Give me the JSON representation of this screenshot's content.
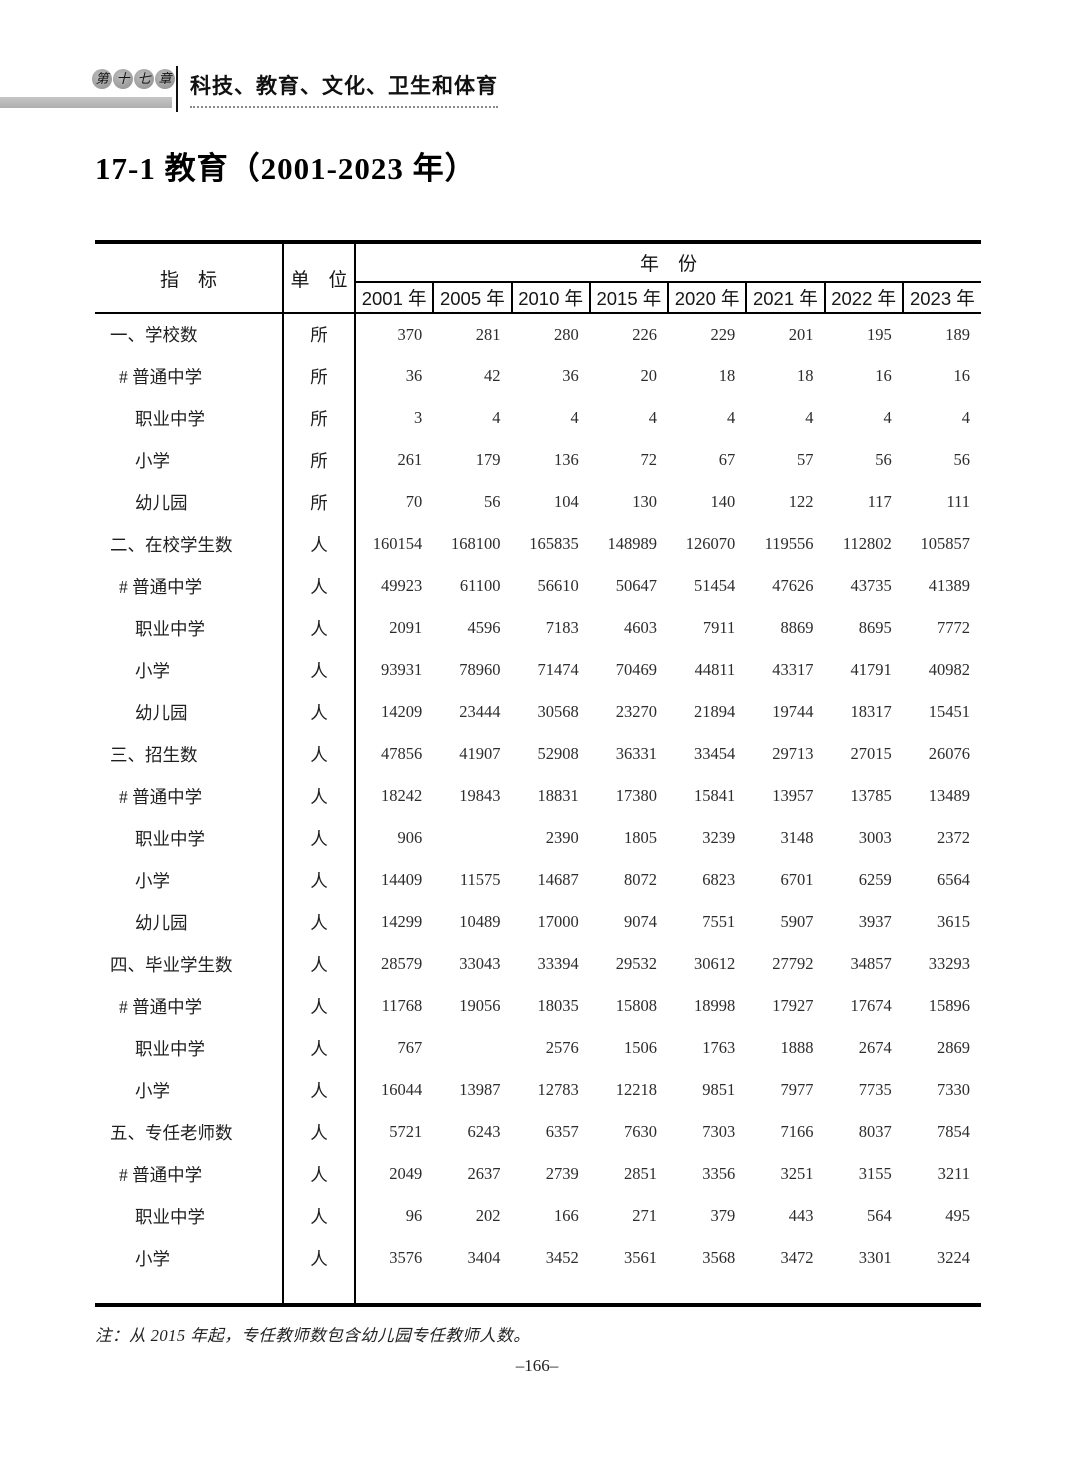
{
  "page": {
    "chapter_badge": "第十七章",
    "chapter_title": "科技、教育、文化、卫生和体育",
    "title": "17-1  教育（2001-2023 年）",
    "note": "注：从 2015 年起，专任教师数包含幼儿园专任教师人数。",
    "page_number": "–166–"
  },
  "table": {
    "header": {
      "indicator": "指　标",
      "unit": "单　位",
      "year_group": "年　份",
      "years": [
        "2001 年",
        "2005 年",
        "2010 年",
        "2015 年",
        "2020 年",
        "2021 年",
        "2022 年",
        "2023 年"
      ]
    },
    "rows": [
      {
        "indicator": "一、学校数",
        "indent": 0,
        "unit": "所",
        "values": [
          "370",
          "281",
          "280",
          "226",
          "229",
          "201",
          "195",
          "189"
        ]
      },
      {
        "indicator": "# 普通中学",
        "indent": 1,
        "unit": "所",
        "values": [
          "36",
          "42",
          "36",
          "20",
          "18",
          "18",
          "16",
          "16"
        ]
      },
      {
        "indicator": "职业中学",
        "indent": 2,
        "unit": "所",
        "values": [
          "3",
          "4",
          "4",
          "4",
          "4",
          "4",
          "4",
          "4"
        ]
      },
      {
        "indicator": "小学",
        "indent": 2,
        "unit": "所",
        "values": [
          "261",
          "179",
          "136",
          "72",
          "67",
          "57",
          "56",
          "56"
        ]
      },
      {
        "indicator": "幼儿园",
        "indent": 2,
        "unit": "所",
        "values": [
          "70",
          "56",
          "104",
          "130",
          "140",
          "122",
          "117",
          "111"
        ]
      },
      {
        "indicator": "二、在校学生数",
        "indent": 0,
        "unit": "人",
        "values": [
          "160154",
          "168100",
          "165835",
          "148989",
          "126070",
          "119556",
          "112802",
          "105857"
        ]
      },
      {
        "indicator": "# 普通中学",
        "indent": 1,
        "unit": "人",
        "values": [
          "49923",
          "61100",
          "56610",
          "50647",
          "51454",
          "47626",
          "43735",
          "41389"
        ]
      },
      {
        "indicator": "职业中学",
        "indent": 2,
        "unit": "人",
        "values": [
          "2091",
          "4596",
          "7183",
          "4603",
          "7911",
          "8869",
          "8695",
          "7772"
        ]
      },
      {
        "indicator": "小学",
        "indent": 2,
        "unit": "人",
        "values": [
          "93931",
          "78960",
          "71474",
          "70469",
          "44811",
          "43317",
          "41791",
          "40982"
        ]
      },
      {
        "indicator": "幼儿园",
        "indent": 2,
        "unit": "人",
        "values": [
          "14209",
          "23444",
          "30568",
          "23270",
          "21894",
          "19744",
          "18317",
          "15451"
        ]
      },
      {
        "indicator": "三、招生数",
        "indent": 0,
        "unit": "人",
        "values": [
          "47856",
          "41907",
          "52908",
          "36331",
          "33454",
          "29713",
          "27015",
          "26076"
        ]
      },
      {
        "indicator": "# 普通中学",
        "indent": 1,
        "unit": "人",
        "values": [
          "18242",
          "19843",
          "18831",
          "17380",
          "15841",
          "13957",
          "13785",
          "13489"
        ]
      },
      {
        "indicator": "职业中学",
        "indent": 2,
        "unit": "人",
        "values": [
          "906",
          "",
          "2390",
          "1805",
          "3239",
          "3148",
          "3003",
          "2372"
        ]
      },
      {
        "indicator": "小学",
        "indent": 2,
        "unit": "人",
        "values": [
          "14409",
          "11575",
          "14687",
          "8072",
          "6823",
          "6701",
          "6259",
          "6564"
        ]
      },
      {
        "indicator": "幼儿园",
        "indent": 2,
        "unit": "人",
        "values": [
          "14299",
          "10489",
          "17000",
          "9074",
          "7551",
          "5907",
          "3937",
          "3615"
        ]
      },
      {
        "indicator": "四、毕业学生数",
        "indent": 0,
        "unit": "人",
        "values": [
          "28579",
          "33043",
          "33394",
          "29532",
          "30612",
          "27792",
          "34857",
          "33293"
        ]
      },
      {
        "indicator": "# 普通中学",
        "indent": 1,
        "unit": "人",
        "values": [
          "11768",
          "19056",
          "18035",
          "15808",
          "18998",
          "17927",
          "17674",
          "15896"
        ]
      },
      {
        "indicator": "职业中学",
        "indent": 2,
        "unit": "人",
        "values": [
          "767",
          "",
          "2576",
          "1506",
          "1763",
          "1888",
          "2674",
          "2869"
        ]
      },
      {
        "indicator": "小学",
        "indent": 2,
        "unit": "人",
        "values": [
          "16044",
          "13987",
          "12783",
          "12218",
          "9851",
          "7977",
          "7735",
          "7330"
        ]
      },
      {
        "indicator": "五、专任老师数",
        "indent": 0,
        "unit": "人",
        "values": [
          "5721",
          "6243",
          "6357",
          "7630",
          "7303",
          "7166",
          "8037",
          "7854"
        ]
      },
      {
        "indicator": "# 普通中学",
        "indent": 1,
        "unit": "人",
        "values": [
          "2049",
          "2637",
          "2739",
          "2851",
          "3356",
          "3251",
          "3155",
          "3211"
        ]
      },
      {
        "indicator": "职业中学",
        "indent": 2,
        "unit": "人",
        "values": [
          "96",
          "202",
          "166",
          "271",
          "379",
          "443",
          "564",
          "495"
        ]
      },
      {
        "indicator": "小学",
        "indent": 2,
        "unit": "人",
        "values": [
          "3576",
          "3404",
          "3452",
          "3561",
          "3568",
          "3472",
          "3301",
          "3224"
        ]
      }
    ]
  }
}
